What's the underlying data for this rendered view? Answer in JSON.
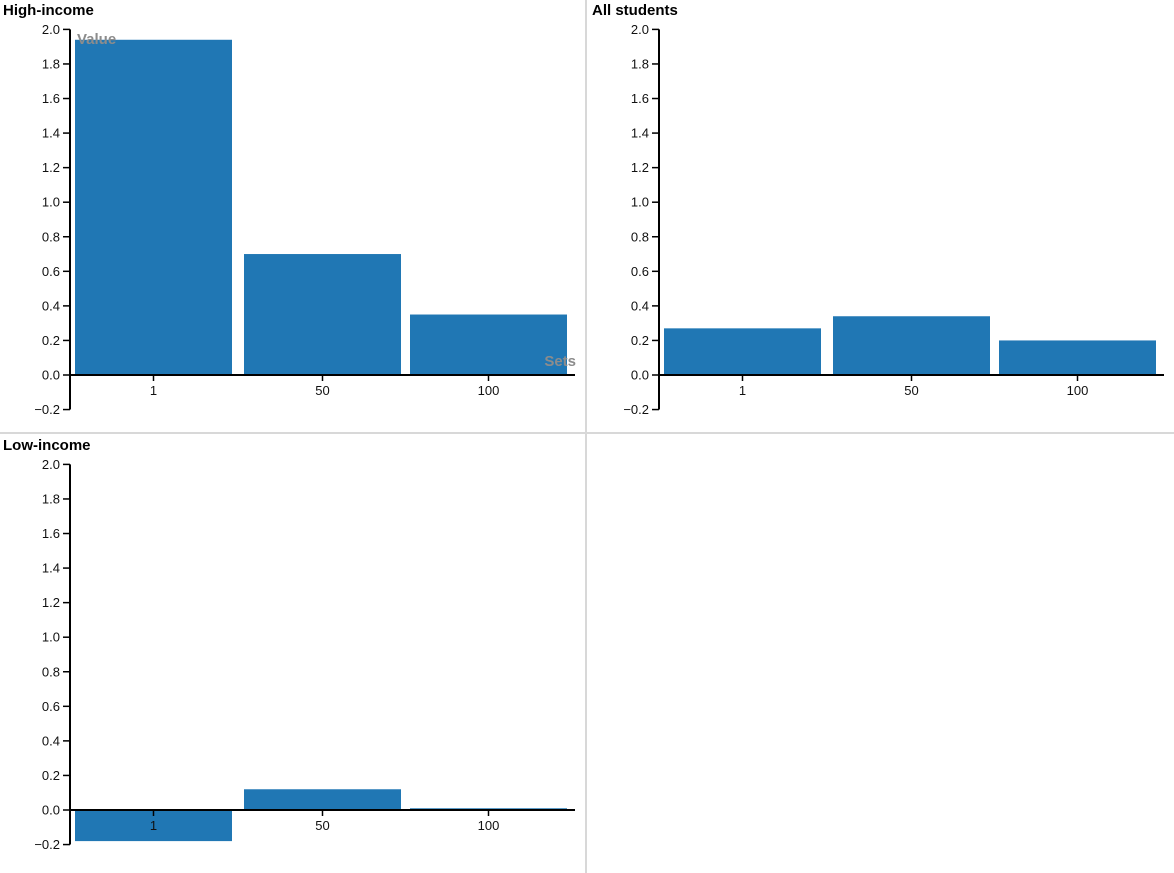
{
  "colors": {
    "bar": "#2077b4",
    "axis": "#000000",
    "tick_label": "#111111",
    "axis_title": "#8c8c8c",
    "divider": "#d8d8d8",
    "background": "#ffffff"
  },
  "chart_data": [
    {
      "type": "bar",
      "title": "High-income",
      "categories": [
        "1",
        "50",
        "100"
      ],
      "values": [
        1.94,
        0.7,
        0.35
      ],
      "ylabel": "Value",
      "xlabel": "Sets",
      "ylim": [
        -0.2,
        2.0
      ],
      "ytick_step": 0.2,
      "yticks": [
        -0.2,
        0.0,
        0.2,
        0.4,
        0.6,
        0.8,
        1.0,
        1.2,
        1.4,
        1.6,
        1.8,
        2.0
      ],
      "grid": false,
      "legend": null
    },
    {
      "type": "bar",
      "title": "All students",
      "categories": [
        "1",
        "50",
        "100"
      ],
      "values": [
        0.27,
        0.34,
        0.2
      ],
      "ylabel": "",
      "xlabel": "",
      "ylim": [
        -0.2,
        2.0
      ],
      "ytick_step": 0.2,
      "yticks": [
        -0.2,
        0.0,
        0.2,
        0.4,
        0.6,
        0.8,
        1.0,
        1.2,
        1.4,
        1.6,
        1.8,
        2.0
      ],
      "grid": false,
      "legend": null
    },
    {
      "type": "bar",
      "title": "Low-income",
      "categories": [
        "1",
        "50",
        "100"
      ],
      "values": [
        -0.18,
        0.12,
        0.01
      ],
      "ylabel": "",
      "xlabel": "",
      "ylim": [
        -0.2,
        2.0
      ],
      "ytick_step": 0.2,
      "yticks": [
        -0.2,
        0.0,
        0.2,
        0.4,
        0.6,
        0.8,
        1.0,
        1.2,
        1.4,
        1.6,
        1.8,
        2.0
      ],
      "grid": false,
      "legend": null
    }
  ]
}
